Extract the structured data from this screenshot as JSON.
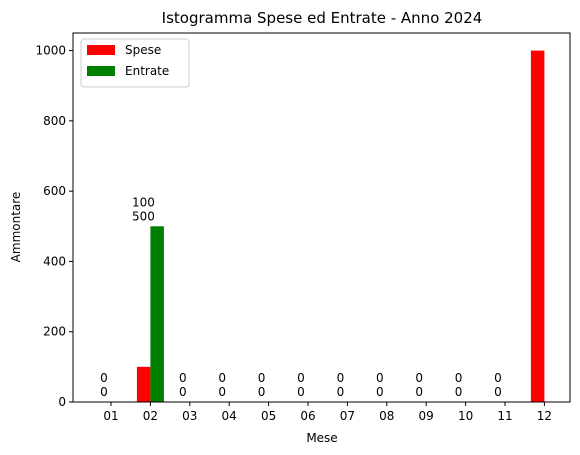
{
  "chart_data": {
    "type": "bar",
    "title": "Istogramma Spese ed Entrate - Anno 2024",
    "xlabel": "Mese",
    "ylabel": "Ammontare",
    "categories": [
      "01",
      "02",
      "03",
      "04",
      "05",
      "06",
      "07",
      "08",
      "09",
      "10",
      "11",
      "12"
    ],
    "series": [
      {
        "name": "Spese",
        "color": "#ff0000",
        "values": [
          0,
          100,
          0,
          0,
          0,
          0,
          0,
          0,
          0,
          0,
          0,
          1000
        ]
      },
      {
        "name": "Entrate",
        "color": "#008000",
        "values": [
          0,
          500,
          0,
          0,
          0,
          0,
          0,
          0,
          0,
          0,
          0,
          0
        ]
      }
    ],
    "data_labels": [
      {
        "category": "01",
        "lines": [
          "0",
          "0"
        ]
      },
      {
        "category": "02",
        "lines": [
          "100",
          "500"
        ]
      },
      {
        "category": "03",
        "lines": [
          "0",
          "0"
        ]
      },
      {
        "category": "04",
        "lines": [
          "0",
          "0"
        ]
      },
      {
        "category": "05",
        "lines": [
          "0",
          "0"
        ]
      },
      {
        "category": "06",
        "lines": [
          "0",
          "0"
        ]
      },
      {
        "category": "07",
        "lines": [
          "0",
          "0"
        ]
      },
      {
        "category": "08",
        "lines": [
          "0",
          "0"
        ]
      },
      {
        "category": "09",
        "lines": [
          "0",
          "0"
        ]
      },
      {
        "category": "10",
        "lines": [
          "0",
          "0"
        ]
      },
      {
        "category": "11",
        "lines": [
          "0",
          "0"
        ]
      }
    ],
    "ylim": [
      0,
      1050
    ],
    "yticks": [
      0,
      200,
      400,
      600,
      800,
      1000
    ],
    "grid": false,
    "legend_position": "top-left"
  }
}
